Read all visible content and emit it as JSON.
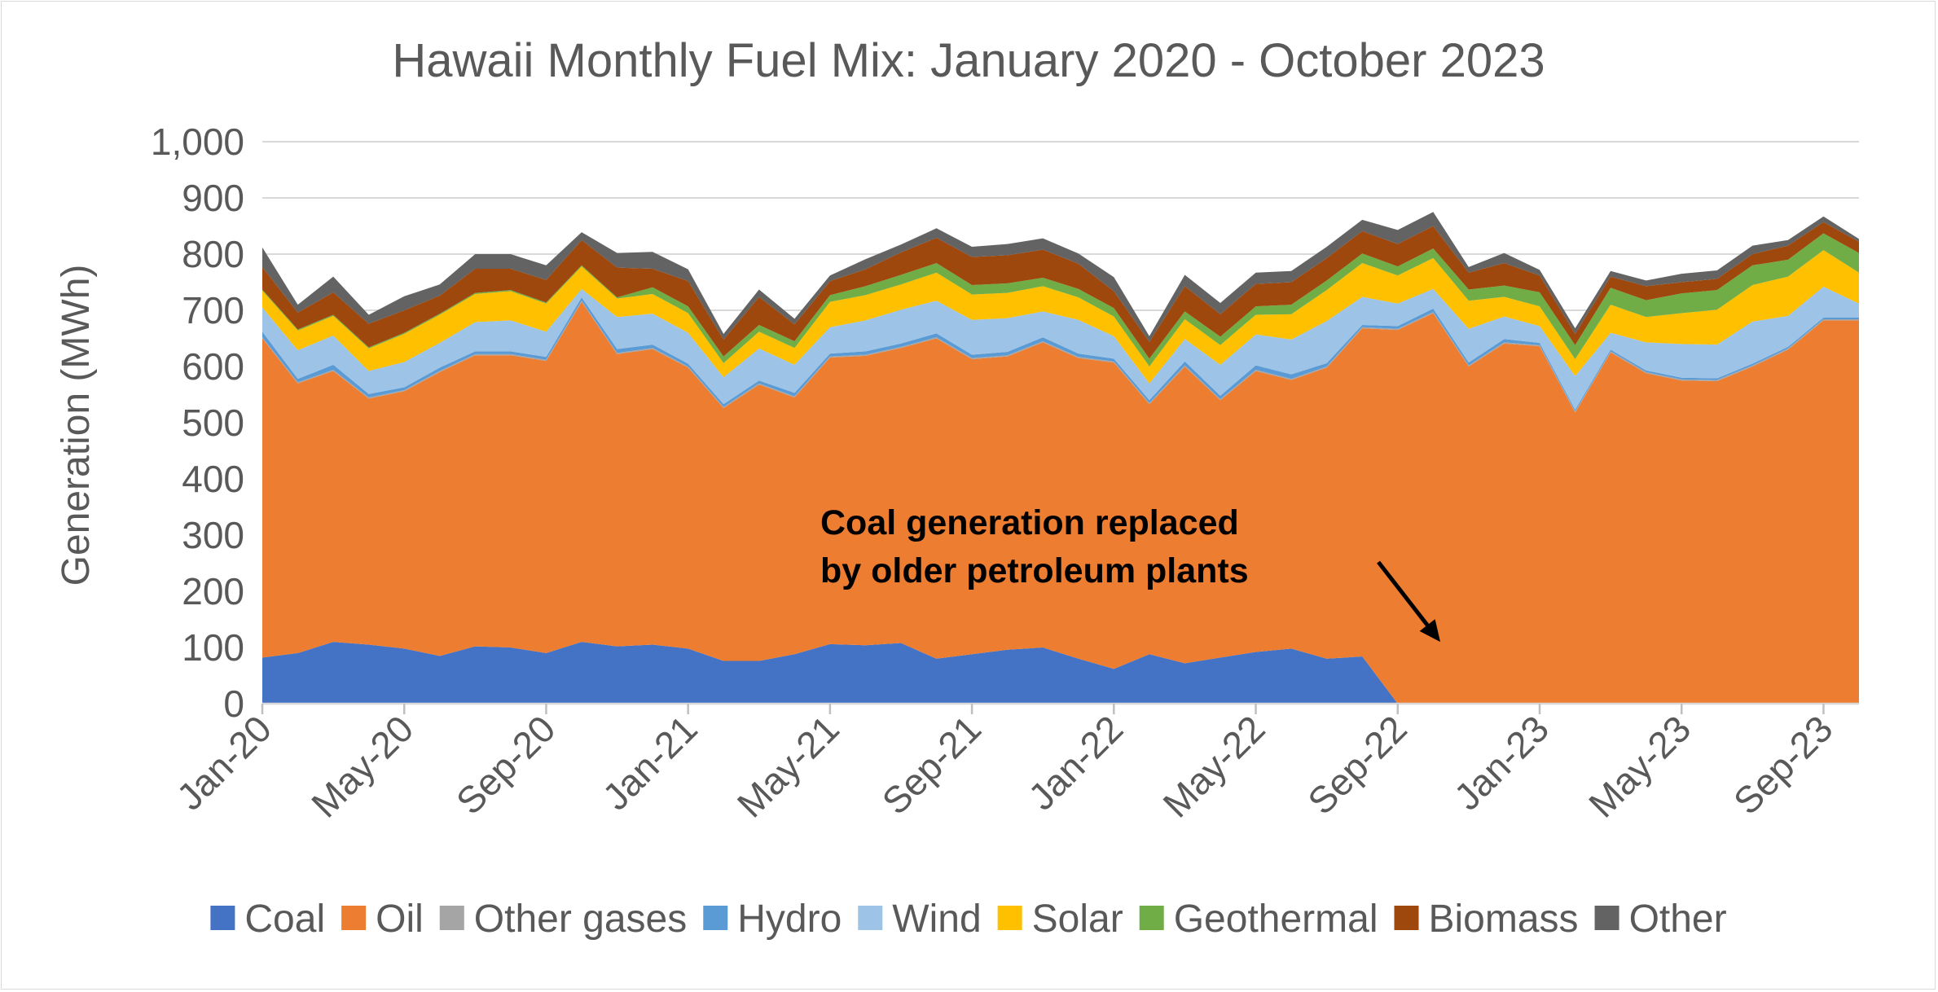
{
  "chart_data": {
    "type": "area",
    "stacked": true,
    "title": "Hawaii Monthly Fuel Mix: January 2020 - October 2023",
    "ylabel": "Generation (MWh)",
    "xlabel": "",
    "ylim": [
      0,
      1000
    ],
    "yticks": [
      0,
      100,
      200,
      300,
      400,
      500,
      600,
      700,
      800,
      900,
      1000
    ],
    "ytick_labels": [
      "0",
      "100",
      "200",
      "300",
      "400",
      "500",
      "600",
      "700",
      "800",
      "900",
      "1,000"
    ],
    "xtick_labels": [
      "Jan-20",
      "May-20",
      "Sep-20",
      "Jan-21",
      "May-21",
      "Sep-21",
      "Jan-22",
      "May-22",
      "Sep-22",
      "Jan-23",
      "May-23",
      "Sep-23"
    ],
    "xtick_month_index": [
      0,
      4,
      8,
      12,
      16,
      20,
      24,
      28,
      32,
      36,
      40,
      44
    ],
    "grid": true,
    "legend_position": "bottom",
    "months": 46,
    "series": [
      {
        "name": "Coal",
        "color": "#4472C4",
        "values": [
          82,
          90,
          110,
          105,
          98,
          85,
          102,
          100,
          90,
          110,
          102,
          105,
          98,
          76,
          76,
          88,
          106,
          104,
          108,
          80,
          88,
          96,
          100,
          80,
          62,
          88,
          72,
          82,
          92,
          98,
          80,
          84,
          0,
          0,
          0,
          0,
          0,
          0,
          0,
          0,
          0,
          0,
          0,
          0,
          0,
          0
        ]
      },
      {
        "name": "Oil",
        "color": "#ED7D31",
        "values": [
          568,
          480,
          482,
          438,
          458,
          505,
          518,
          520,
          520,
          605,
          520,
          526,
          500,
          450,
          492,
          457,
          510,
          515,
          525,
          570,
          525,
          522,
          543,
          535,
          545,
          445,
          528,
          458,
          500,
          478,
          518,
          584,
          665,
          695,
          600,
          641,
          636,
          518,
          625,
          588,
          575,
          574,
          600,
          630,
          682,
          682
        ]
      },
      {
        "name": "Other gases",
        "color": "#A5A5A5",
        "values": [
          2,
          2,
          2,
          2,
          2,
          2,
          2,
          2,
          2,
          2,
          2,
          2,
          2,
          2,
          2,
          2,
          2,
          2,
          2,
          2,
          2,
          2,
          2,
          2,
          2,
          2,
          2,
          2,
          2,
          2,
          2,
          2,
          2,
          2,
          2,
          2,
          2,
          2,
          2,
          2,
          2,
          2,
          2,
          2,
          2,
          2
        ]
      },
      {
        "name": "Hydro",
        "color": "#5B9BD5",
        "values": [
          10,
          6,
          9,
          6,
          5,
          6,
          5,
          5,
          5,
          6,
          7,
          6,
          5,
          5,
          5,
          6,
          5,
          6,
          6,
          7,
          6,
          6,
          7,
          6,
          5,
          5,
          7,
          6,
          8,
          8,
          6,
          4,
          5,
          6,
          5,
          6,
          4,
          3,
          3,
          3,
          3,
          3,
          3,
          3,
          3,
          3
        ]
      },
      {
        "name": "Wind",
        "color": "#9DC3E6",
        "values": [
          43,
          51,
          52,
          41,
          45,
          44,
          52,
          55,
          45,
          15,
          57,
          55,
          55,
          48,
          57,
          50,
          47,
          55,
          60,
          58,
          62,
          60,
          46,
          60,
          40,
          30,
          40,
          55,
          55,
          62,
          75,
          50,
          40,
          35,
          60,
          40,
          30,
          60,
          30,
          50,
          60,
          60,
          75,
          55,
          55,
          25
        ]
      },
      {
        "name": "Solar",
        "color": "#FFC000",
        "values": [
          30,
          35,
          35,
          40,
          50,
          50,
          50,
          52,
          50,
          40,
          33,
          35,
          35,
          25,
          30,
          30,
          45,
          45,
          45,
          50,
          45,
          45,
          45,
          40,
          35,
          30,
          35,
          35,
          35,
          45,
          55,
          60,
          50,
          55,
          50,
          35,
          35,
          30,
          50,
          45,
          55,
          62,
          65,
          70,
          65,
          55
        ]
      },
      {
        "name": "Geothermal",
        "color": "#70AD47",
        "values": [
          2,
          2,
          2,
          2,
          2,
          2,
          2,
          2,
          2,
          2,
          2,
          12,
          12,
          12,
          12,
          12,
          12,
          16,
          17,
          17,
          17,
          17,
          15,
          15,
          15,
          14,
          14,
          15,
          15,
          17,
          17,
          17,
          16,
          17,
          20,
          20,
          25,
          25,
          30,
          30,
          35,
          35,
          35,
          30,
          30,
          35
        ]
      },
      {
        "name": "Biomass",
        "color": "#9E480E",
        "values": [
          40,
          30,
          40,
          42,
          40,
          32,
          43,
          38,
          40,
          45,
          53,
          33,
          45,
          30,
          50,
          30,
          25,
          30,
          40,
          45,
          50,
          50,
          50,
          45,
          30,
          30,
          45,
          40,
          40,
          40,
          40,
          40,
          40,
          40,
          30,
          40,
          30,
          20,
          20,
          25,
          20,
          20,
          20,
          25,
          20,
          20
        ]
      },
      {
        "name": "Other",
        "color": "#636363",
        "values": [
          35,
          14,
          28,
          16,
          25,
          20,
          26,
          26,
          26,
          14,
          26,
          30,
          21,
          10,
          13,
          10,
          10,
          18,
          14,
          17,
          18,
          20,
          20,
          18,
          25,
          10,
          20,
          20,
          20,
          20,
          20,
          20,
          25,
          25,
          10,
          18,
          10,
          10,
          10,
          10,
          15,
          15,
          15,
          10,
          10,
          5
        ]
      }
    ],
    "annotations": [
      {
        "text_lines": [
          "Coal generation replaced",
          "by older petroleum plants"
        ],
        "arrow_month": 33.2,
        "arrow_value": 110
      }
    ]
  }
}
